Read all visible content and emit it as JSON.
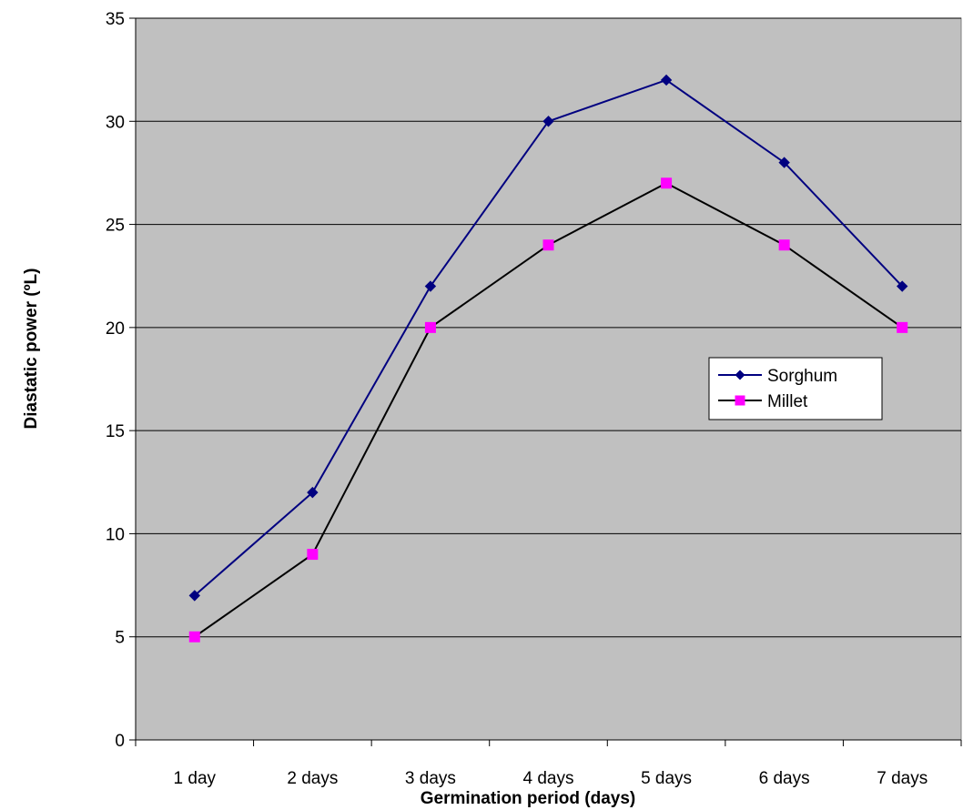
{
  "chart_data": {
    "type": "line",
    "title": "",
    "xlabel": "Germination period (days)",
    "ylabel": "Diastatic power (ºL)",
    "categories": [
      "1 day",
      "2 days",
      "3 days",
      "4 days",
      "5 days",
      "6 days",
      "7 days"
    ],
    "ylim": [
      0,
      35
    ],
    "yticks": [
      0,
      5,
      10,
      15,
      20,
      25,
      30,
      35
    ],
    "grid": true,
    "legend_position": "right",
    "series": [
      {
        "name": "Sorghum",
        "values": [
          7,
          12,
          22,
          30,
          32,
          28,
          22
        ],
        "color": "#000080",
        "marker": "diamond"
      },
      {
        "name": "Millet",
        "values": [
          5,
          9,
          20,
          24,
          27,
          24,
          20
        ],
        "color": "#000000",
        "marker_color": "#ff00ff",
        "marker": "square"
      }
    ],
    "plot_background": "#c0c0c0"
  }
}
